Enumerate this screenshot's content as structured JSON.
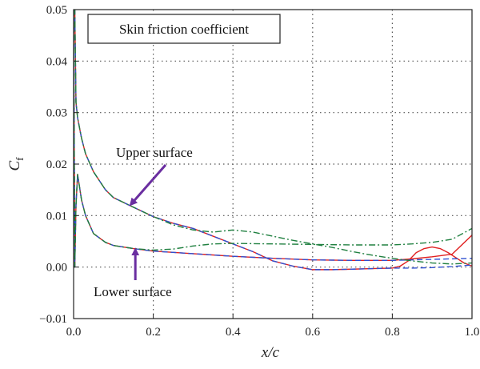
{
  "chart_data": {
    "type": "line",
    "title": "Skin friction coefficient",
    "xlabel": "x/c",
    "ylabel": "C_f",
    "xlim": [
      0,
      1
    ],
    "ylim": [
      -0.01,
      0.05
    ],
    "grid": true,
    "x_ticks": [
      "0.0",
      "0.2",
      "0.4",
      "0.6",
      "0.8",
      "1.0"
    ],
    "y_ticks": [
      "−0.01",
      "0.00",
      "0.01",
      "0.02",
      "0.03",
      "0.04",
      "0.05"
    ],
    "x_tick_values": [
      0,
      0.2,
      0.4,
      0.6,
      0.8,
      1.0
    ],
    "y_tick_values": [
      -0.01,
      0,
      0.01,
      0.02,
      0.03,
      0.04,
      0.05
    ],
    "annotations": [
      {
        "text": "Upper surface",
        "arrow_to": [
          0.14,
          0.0125
        ]
      },
      {
        "text": "Lower surface",
        "arrow_to": [
          0.155,
          0.0038
        ]
      }
    ],
    "series": [
      {
        "color": "#e02020",
        "dash": "solid",
        "x": [
          0,
          0.003,
          0.006,
          0.01,
          0.015,
          0.02,
          0.03,
          0.05,
          0.08,
          0.1,
          0.14,
          0.2,
          0.25,
          0.3,
          0.35,
          0.4,
          0.45,
          0.5,
          0.55,
          0.6,
          0.65,
          0.7,
          0.75,
          0.8,
          0.82,
          0.84,
          0.86,
          0.88,
          0.9,
          0.92,
          0.94,
          0.96,
          0.98,
          1.0
        ],
        "y": [
          0.05,
          0.05,
          0.032,
          0.029,
          0.027,
          0.025,
          0.022,
          0.0185,
          0.015,
          0.0135,
          0.012,
          0.0098,
          0.0085,
          0.0075,
          0.006,
          0.0045,
          0.003,
          0.0012,
          0.0002,
          -0.0005,
          -0.0005,
          -0.0004,
          -0.0003,
          -0.0002,
          0.0002,
          0.0012,
          0.0028,
          0.0036,
          0.0039,
          0.0036,
          0.0028,
          0.0018,
          0.0008,
          0.0002
        ]
      },
      {
        "color": "#e02020",
        "dash": "solid",
        "x": [
          0,
          0.003,
          0.006,
          0.01,
          0.02,
          0.03,
          0.05,
          0.08,
          0.1,
          0.15,
          0.2,
          0.3,
          0.4,
          0.5,
          0.6,
          0.7,
          0.8,
          0.85,
          0.9,
          0.95,
          1.0
        ],
        "y": [
          0.05,
          0.0,
          0.012,
          0.018,
          0.013,
          0.01,
          0.0065,
          0.0048,
          0.0042,
          0.0036,
          0.0031,
          0.0026,
          0.0021,
          0.0017,
          0.0014,
          0.0013,
          0.0013,
          0.0016,
          0.002,
          0.0025,
          0.0062
        ]
      },
      {
        "color": "#3050d0",
        "dash": "dashed",
        "x": [
          0,
          0.003,
          0.006,
          0.01,
          0.015,
          0.02,
          0.03,
          0.05,
          0.08,
          0.1,
          0.14,
          0.2,
          0.25,
          0.3,
          0.35,
          0.4,
          0.45,
          0.5,
          0.55,
          0.6,
          0.65,
          0.7,
          0.75,
          0.8,
          0.85,
          0.9,
          0.95,
          1.0
        ],
        "y": [
          0.05,
          0.05,
          0.032,
          0.029,
          0.027,
          0.025,
          0.022,
          0.0185,
          0.015,
          0.0135,
          0.012,
          0.0098,
          0.0085,
          0.0075,
          0.006,
          0.0045,
          0.003,
          0.0012,
          0.0002,
          -0.0005,
          -0.0005,
          -0.0004,
          -0.0003,
          -0.0002,
          -0.0002,
          -0.0001,
          0.0001,
          0.0004
        ]
      },
      {
        "color": "#3050d0",
        "dash": "dashed",
        "x": [
          0,
          0.003,
          0.006,
          0.01,
          0.02,
          0.03,
          0.05,
          0.08,
          0.1,
          0.15,
          0.2,
          0.3,
          0.4,
          0.5,
          0.6,
          0.7,
          0.8,
          0.85,
          0.9,
          0.95,
          1.0
        ],
        "y": [
          0.05,
          0.0,
          0.012,
          0.018,
          0.013,
          0.01,
          0.0065,
          0.0048,
          0.0042,
          0.0036,
          0.0031,
          0.0026,
          0.0021,
          0.0017,
          0.0014,
          0.0013,
          0.0013,
          0.0014,
          0.0015,
          0.0016,
          0.0017
        ]
      },
      {
        "color": "#208040",
        "dash": "dashdot",
        "x": [
          0,
          0.003,
          0.006,
          0.01,
          0.015,
          0.02,
          0.03,
          0.05,
          0.08,
          0.1,
          0.14,
          0.2,
          0.25,
          0.3,
          0.35,
          0.4,
          0.45,
          0.5,
          0.55,
          0.6,
          0.65,
          0.7,
          0.75,
          0.8,
          0.85,
          0.9,
          0.95,
          1.0
        ],
        "y": [
          0.05,
          0.05,
          0.032,
          0.029,
          0.027,
          0.025,
          0.022,
          0.0185,
          0.015,
          0.0135,
          0.012,
          0.0098,
          0.0082,
          0.0072,
          0.0068,
          0.0072,
          0.0068,
          0.006,
          0.0052,
          0.0045,
          0.0038,
          0.003,
          0.0023,
          0.0017,
          0.0012,
          0.0008,
          0.0006,
          0.0008
        ]
      },
      {
        "color": "#208040",
        "dash": "dashdot",
        "x": [
          0,
          0.003,
          0.006,
          0.01,
          0.02,
          0.03,
          0.05,
          0.08,
          0.1,
          0.15,
          0.2,
          0.25,
          0.3,
          0.35,
          0.4,
          0.5,
          0.6,
          0.7,
          0.8,
          0.85,
          0.9,
          0.95,
          1.0
        ],
        "y": [
          0.05,
          0.0,
          0.012,
          0.018,
          0.013,
          0.01,
          0.0065,
          0.0048,
          0.0042,
          0.0036,
          0.0033,
          0.0035,
          0.0041,
          0.0045,
          0.0046,
          0.0045,
          0.0044,
          0.0043,
          0.0043,
          0.0045,
          0.0048,
          0.0054,
          0.0075
        ]
      }
    ]
  }
}
